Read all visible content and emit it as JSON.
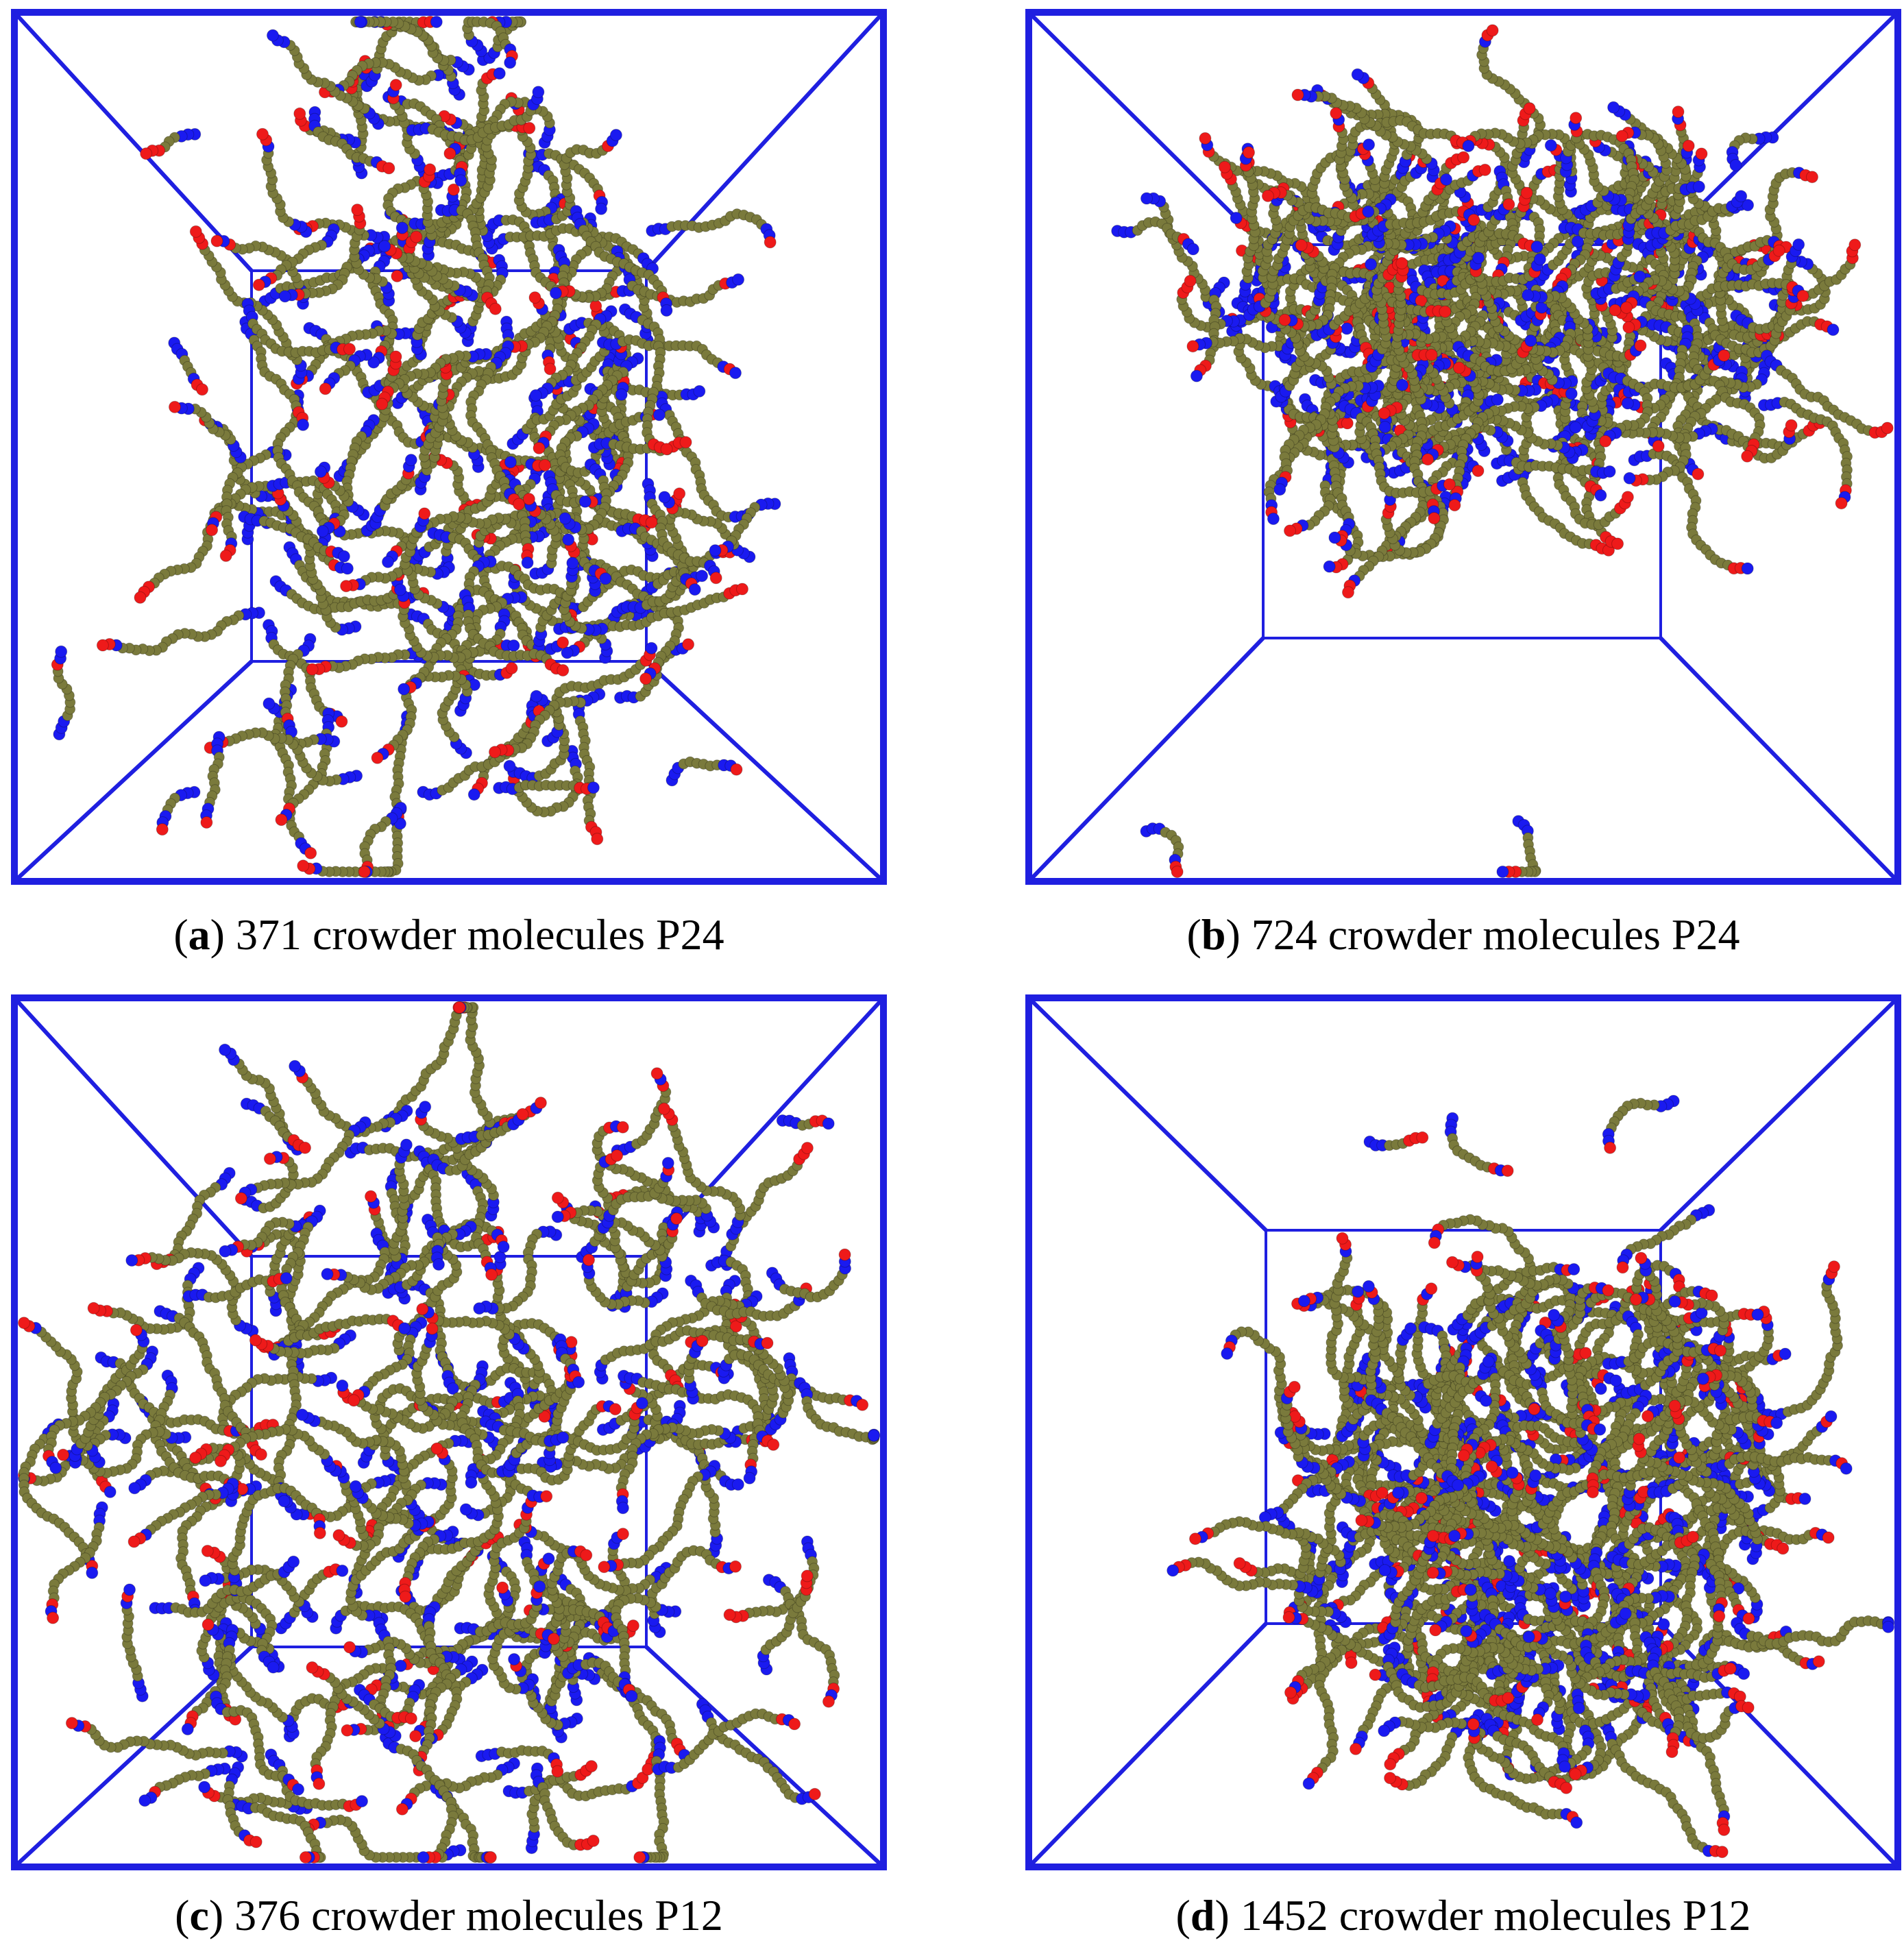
{
  "colors": {
    "box_frame": "#1f1fe0",
    "bead_body": "#7a7a3c",
    "bead_end_blue": "#1a1af0",
    "bead_end_red": "#ee1a1a",
    "background": "#ffffff"
  },
  "panels": [
    {
      "id": "a",
      "letter": "a",
      "caption": "371 crowder molecules P24",
      "layout": "center"
    },
    {
      "id": "b",
      "letter": "b",
      "caption": "724 crowder molecules P24",
      "layout": "upper-cluster"
    },
    {
      "id": "c",
      "letter": "c",
      "caption": "376 crowder molecules P12",
      "layout": "center"
    },
    {
      "id": "d",
      "letter": "d",
      "caption": "1452 crowder molecules P12",
      "layout": "compact-cluster"
    }
  ]
}
